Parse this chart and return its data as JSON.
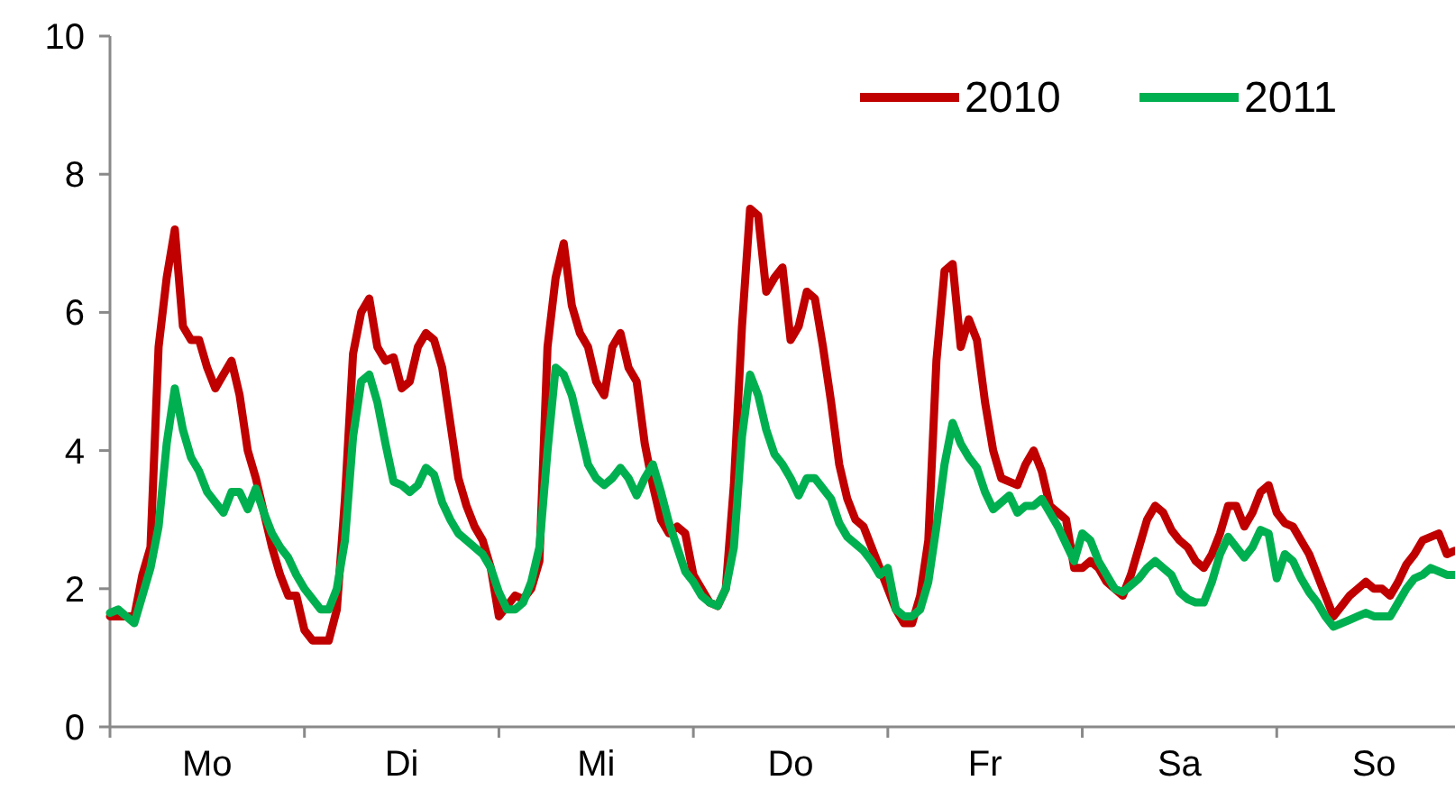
{
  "chart_data": {
    "type": "line",
    "ylim": [
      0,
      10
    ],
    "yticks": [
      0,
      2,
      4,
      6,
      8,
      10
    ],
    "categories": [
      null,
      null,
      null,
      null,
      null,
      null,
      null,
      null,
      null,
      null,
      null,
      null,
      "Mo",
      null,
      null,
      null,
      null,
      null,
      null,
      null,
      null,
      null,
      null,
      null,
      null,
      null,
      null,
      null,
      null,
      null,
      null,
      null,
      null,
      null,
      null,
      null,
      "Di",
      null,
      null,
      null,
      null,
      null,
      null,
      null,
      null,
      null,
      null,
      null,
      null,
      null,
      null,
      null,
      null,
      null,
      null,
      null,
      null,
      null,
      null,
      null,
      "Mi",
      null,
      null,
      null,
      null,
      null,
      null,
      null,
      null,
      null,
      null,
      null,
      null,
      null,
      null,
      null,
      null,
      null,
      null,
      null,
      null,
      null,
      null,
      null,
      "Do",
      null,
      null,
      null,
      null,
      null,
      null,
      null,
      null,
      null,
      null,
      null,
      null,
      null,
      null,
      null,
      null,
      null,
      null,
      null,
      null,
      null,
      null,
      null,
      "Fr",
      null,
      null,
      null,
      null,
      null,
      null,
      null,
      null,
      null,
      null,
      null,
      null,
      null,
      null,
      null,
      null,
      null,
      null,
      null,
      null,
      null,
      null,
      null,
      "Sa",
      null,
      null,
      null,
      null,
      null,
      null,
      null,
      null,
      null,
      null,
      null,
      null,
      null,
      null,
      null,
      null,
      null,
      null,
      null,
      null,
      null,
      null,
      null,
      "So",
      null,
      null,
      null,
      null,
      null,
      null,
      null,
      null,
      null,
      null
    ],
    "grid": false,
    "legend": "top right",
    "marker": "none",
    "line_style": "solid",
    "series": [
      {
        "name": "2010",
        "color": "#c00000",
        "values": [
          1.6,
          1.6,
          1.6,
          1.6,
          2.2,
          2.6,
          5.5,
          6.5,
          7.2,
          5.8,
          5.6,
          5.6,
          5.2,
          4.9,
          5.1,
          5.3,
          4.8,
          4.0,
          3.6,
          3.1,
          2.6,
          2.2,
          1.9,
          1.9,
          1.4,
          1.25,
          1.25,
          1.25,
          1.7,
          3.3,
          5.4,
          6.0,
          6.2,
          5.5,
          5.3,
          5.35,
          4.9,
          5.0,
          5.5,
          5.7,
          5.6,
          5.2,
          4.4,
          3.6,
          3.2,
          2.9,
          2.7,
          2.3,
          1.6,
          1.75,
          1.9,
          1.85,
          2.0,
          2.4,
          5.5,
          6.5,
          7.0,
          6.1,
          5.7,
          5.5,
          5.0,
          4.8,
          5.5,
          5.7,
          5.2,
          5.0,
          4.1,
          3.5,
          3.0,
          2.8,
          2.9,
          2.8,
          2.2,
          2.0,
          1.8,
          1.75,
          2.0,
          3.5,
          5.8,
          7.5,
          7.4,
          6.3,
          6.5,
          6.65,
          5.6,
          5.8,
          6.3,
          6.2,
          5.5,
          4.7,
          3.8,
          3.3,
          3.0,
          2.9,
          2.6,
          2.3,
          2.0,
          1.7,
          1.5,
          1.5,
          1.9,
          2.7,
          5.3,
          6.6,
          6.7,
          5.5,
          5.9,
          5.6,
          4.7,
          4.0,
          3.6,
          3.55,
          3.5,
          3.8,
          4.0,
          3.7,
          3.2,
          3.1,
          3.0,
          2.3,
          2.3,
          2.4,
          2.3,
          2.1,
          2.0,
          1.9,
          2.2,
          2.6,
          3.0,
          3.2,
          3.1,
          2.85,
          2.7,
          2.6,
          2.4,
          2.3,
          2.5,
          2.8,
          3.2,
          3.2,
          2.9,
          3.1,
          3.4,
          3.5,
          3.1,
          2.95,
          2.9,
          2.7,
          2.5,
          2.2,
          1.9,
          1.6,
          1.75,
          1.9,
          2.0,
          2.1,
          2.0,
          2.0,
          1.9,
          2.1,
          2.35,
          2.5,
          2.7,
          2.75,
          2.8,
          2.5,
          2.55
        ]
      },
      {
        "name": "2011",
        "color": "#00b050",
        "values": [
          1.65,
          1.7,
          1.6,
          1.5,
          1.9,
          2.3,
          2.9,
          4.1,
          4.9,
          4.3,
          3.9,
          3.7,
          3.4,
          3.25,
          3.1,
          3.4,
          3.4,
          3.15,
          3.45,
          3.1,
          2.8,
          2.6,
          2.45,
          2.2,
          2.0,
          1.85,
          1.7,
          1.7,
          2.0,
          2.7,
          4.2,
          5.0,
          5.1,
          4.7,
          4.1,
          3.55,
          3.5,
          3.4,
          3.5,
          3.75,
          3.65,
          3.25,
          3.0,
          2.8,
          2.7,
          2.6,
          2.5,
          2.3,
          1.95,
          1.7,
          1.7,
          1.8,
          2.1,
          2.6,
          4.0,
          5.2,
          5.1,
          4.8,
          4.3,
          3.8,
          3.6,
          3.5,
          3.6,
          3.75,
          3.6,
          3.35,
          3.6,
          3.8,
          3.4,
          2.95,
          2.6,
          2.25,
          2.1,
          1.9,
          1.8,
          1.75,
          2.0,
          2.6,
          4.2,
          5.1,
          4.8,
          4.3,
          3.95,
          3.8,
          3.6,
          3.35,
          3.6,
          3.6,
          3.45,
          3.3,
          2.95,
          2.75,
          2.65,
          2.55,
          2.4,
          2.2,
          2.3,
          1.7,
          1.6,
          1.6,
          1.7,
          2.1,
          2.9,
          3.8,
          4.4,
          4.1,
          3.9,
          3.75,
          3.4,
          3.15,
          3.25,
          3.35,
          3.1,
          3.2,
          3.2,
          3.3,
          3.1,
          2.9,
          2.65,
          2.4,
          2.8,
          2.7,
          2.4,
          2.2,
          2.0,
          1.95,
          2.05,
          2.15,
          2.3,
          2.4,
          2.3,
          2.2,
          1.95,
          1.85,
          1.8,
          1.8,
          2.1,
          2.5,
          2.75,
          2.6,
          2.45,
          2.6,
          2.85,
          2.8,
          2.15,
          2.5,
          2.4,
          2.15,
          1.95,
          1.8,
          1.6,
          1.45,
          1.5,
          1.55,
          1.6,
          1.65,
          1.6,
          1.6,
          1.6,
          1.8,
          2.0,
          2.15,
          2.2,
          2.3,
          2.25,
          2.2,
          2.2
        ]
      }
    ]
  }
}
